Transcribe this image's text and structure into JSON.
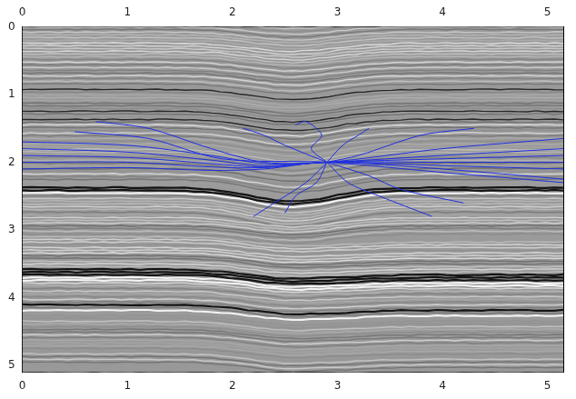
{
  "chart_data": {
    "type": "line",
    "xlim": [
      0,
      5.15
    ],
    "ylim": [
      0,
      5.1
    ],
    "xticks": [
      0,
      1,
      2,
      3,
      4,
      5
    ],
    "yticks": [
      0,
      1,
      2,
      3,
      4,
      5
    ],
    "grid": false,
    "marker": "none",
    "line_style": "solid",
    "color": "#1f2fe0",
    "series": [
      {
        "values": [
          [
            0.7,
            1.4
          ],
          [
            1.2,
            1.5
          ],
          [
            1.8,
            1.8
          ],
          [
            2.3,
            2.0
          ],
          [
            2.9,
            2.0
          ],
          [
            4.0,
            1.8
          ],
          [
            5.15,
            1.65
          ]
        ]
      },
      {
        "values": [
          [
            0,
            1.7
          ],
          [
            1.0,
            1.75
          ],
          [
            1.8,
            1.9
          ],
          [
            2.3,
            2.02
          ],
          [
            2.9,
            2.0
          ],
          [
            4.0,
            1.9
          ],
          [
            5.15,
            1.8
          ]
        ]
      },
      {
        "values": [
          [
            0,
            1.8
          ],
          [
            1.0,
            1.85
          ],
          [
            1.8,
            1.97
          ],
          [
            2.3,
            2.05
          ],
          [
            2.9,
            2.0
          ],
          [
            4.0,
            1.95
          ],
          [
            5.15,
            1.9
          ]
        ]
      },
      {
        "values": [
          [
            0,
            1.9
          ],
          [
            1.0,
            1.93
          ],
          [
            1.8,
            2.02
          ],
          [
            2.3,
            2.07
          ],
          [
            2.9,
            2.0
          ],
          [
            4.0,
            2.0
          ],
          [
            5.15,
            2.0
          ]
        ]
      },
      {
        "values": [
          [
            0,
            2.0
          ],
          [
            1.0,
            2.0
          ],
          [
            1.8,
            2.07
          ],
          [
            2.3,
            2.08
          ],
          [
            2.9,
            2.0
          ],
          [
            4.0,
            2.05
          ],
          [
            5.15,
            2.1
          ]
        ]
      },
      {
        "values": [
          [
            0,
            2.1
          ],
          [
            1.0,
            2.08
          ],
          [
            1.8,
            2.12
          ],
          [
            2.3,
            2.1
          ],
          [
            2.9,
            2.0
          ],
          [
            4.0,
            2.1
          ],
          [
            5.15,
            2.25
          ]
        ]
      },
      {
        "values": [
          [
            0.5,
            1.55
          ],
          [
            1.2,
            1.65
          ],
          [
            1.9,
            1.95
          ],
          [
            2.9,
            2.0
          ],
          [
            4.0,
            2.15
          ],
          [
            5.15,
            2.3
          ]
        ]
      },
      {
        "values": [
          [
            2.9,
            2.0
          ],
          [
            2.75,
            1.8
          ],
          [
            2.85,
            1.6
          ],
          [
            2.7,
            1.4
          ],
          [
            2.6,
            1.45
          ]
        ]
      },
      {
        "values": [
          [
            2.9,
            2.0
          ],
          [
            3.05,
            1.75
          ],
          [
            3.2,
            1.6
          ],
          [
            3.3,
            1.5
          ]
        ]
      },
      {
        "values": [
          [
            2.9,
            2.0
          ],
          [
            2.7,
            2.3
          ],
          [
            2.4,
            2.6
          ],
          [
            2.2,
            2.8
          ]
        ]
      },
      {
        "values": [
          [
            2.9,
            2.0
          ],
          [
            2.8,
            2.3
          ],
          [
            2.6,
            2.5
          ],
          [
            2.5,
            2.75
          ]
        ]
      },
      {
        "values": [
          [
            2.9,
            2.0
          ],
          [
            3.1,
            2.3
          ],
          [
            3.4,
            2.5
          ],
          [
            3.9,
            2.8
          ]
        ]
      },
      {
        "values": [
          [
            2.9,
            2.0
          ],
          [
            3.3,
            2.2
          ],
          [
            3.6,
            2.4
          ],
          [
            4.2,
            2.6
          ]
        ]
      },
      {
        "values": [
          [
            2.9,
            2.0
          ],
          [
            2.5,
            1.75
          ],
          [
            2.3,
            1.6
          ],
          [
            2.1,
            1.5
          ]
        ]
      },
      {
        "values": [
          [
            2.9,
            2.0
          ],
          [
            3.2,
            1.9
          ],
          [
            3.8,
            1.6
          ],
          [
            4.3,
            1.5
          ]
        ]
      }
    ]
  }
}
